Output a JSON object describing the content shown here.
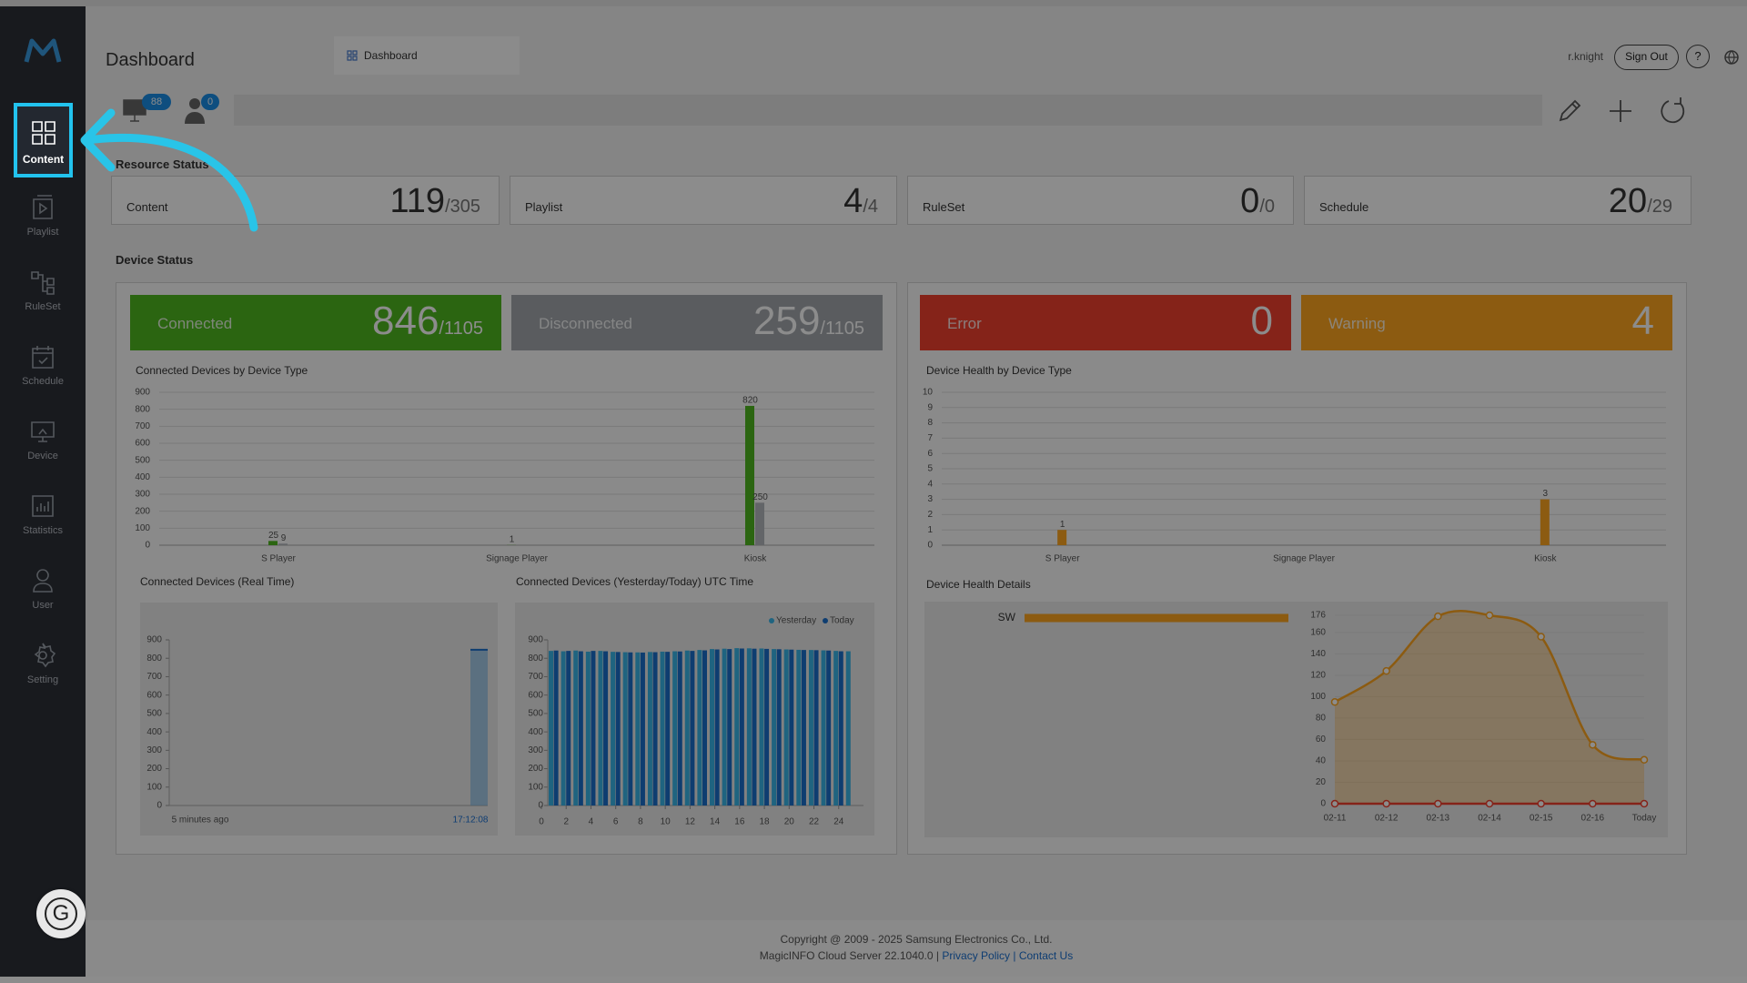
{
  "sidebar": {
    "items": [
      "Content",
      "Playlist",
      "RuleSet",
      "Schedule",
      "Device",
      "Statistics",
      "User",
      "Setting"
    ]
  },
  "header": {
    "title": "Dashboard",
    "tab": "Dashboard",
    "user": "r.knight",
    "sign_out": "Sign Out",
    "help": "?"
  },
  "toolbar": {
    "device_badge": 88,
    "user_badge": 0
  },
  "resource_status": {
    "title": "Resource Status",
    "cards": [
      {
        "label": "Content",
        "count": 119,
        "total": "/305"
      },
      {
        "label": "Playlist",
        "count": 4,
        "total": "/4"
      },
      {
        "label": "RuleSet",
        "count": 0,
        "total": "/0"
      },
      {
        "label": "Schedule",
        "count": 20,
        "total": "/29"
      }
    ]
  },
  "device_status": {
    "title": "Device Status",
    "cards": [
      {
        "label": "Connected",
        "count": 846,
        "total": "/1105",
        "color": "#4fb81f"
      },
      {
        "label": "Disconnected",
        "count": 259,
        "total": "/1105",
        "color": "#a4a8ae"
      },
      {
        "label": "Error",
        "count": 0,
        "total": null,
        "color": "#f2402f"
      },
      {
        "label": "Warning",
        "count": 4,
        "total": null,
        "color": "#ffa620"
      }
    ]
  },
  "charts": [
    {
      "type": "bar",
      "title": "Connected Devices by Device Type",
      "categories": [
        "S Player",
        "Signage Player",
        "Kiosk"
      ],
      "series": [
        {
          "color": "#4fb81f",
          "values": [
            25,
            1,
            820
          ],
          "value_labels": [
            "25",
            "1",
            "820"
          ]
        },
        {
          "color": "#b4b8be",
          "values": [
            9,
            0,
            250
          ],
          "value_labels": [
            "9",
            null,
            "250"
          ]
        }
      ],
      "ylim": [
        0,
        900
      ],
      "yticks": [
        0,
        100,
        200,
        300,
        400,
        500,
        600,
        700,
        800,
        900
      ],
      "grid": true
    },
    {
      "type": "bar",
      "title": "Device Health by Device Type",
      "categories": [
        "S Player",
        "Signage Player",
        "Kiosk"
      ],
      "series": [
        {
          "color": "#ffa620",
          "values": [
            1,
            0,
            3
          ],
          "value_labels": [
            "1",
            null,
            "3"
          ]
        }
      ],
      "ylim": [
        0,
        10
      ],
      "yticks": [
        0,
        1,
        2,
        3,
        4,
        5,
        6,
        7,
        8,
        9,
        10
      ],
      "grid": true
    },
    {
      "type": "realtime",
      "title": "Connected Devices (Real Time)",
      "x_labels": [
        "5 minutes ago",
        "17:12:08"
      ],
      "values": [
        846
      ],
      "color": "#6fb3ea",
      "ylim": [
        0,
        900
      ],
      "yticks": [
        0,
        100,
        200,
        300,
        400,
        500,
        600,
        700,
        800,
        900
      ],
      "grid": false
    },
    {
      "type": "hourly",
      "title": "Connected Devices (Yesterday/Today) UTC Time",
      "x": [
        1,
        2,
        3,
        4,
        5,
        6,
        7,
        8,
        9,
        10,
        11,
        12,
        13,
        14,
        15,
        16,
        17,
        18,
        19,
        20,
        21,
        22,
        23,
        24,
        25
      ],
      "series": [
        {
          "name": "Yesterday",
          "color": "#3ab6ea",
          "values": [
            840,
            838,
            842,
            836,
            840,
            835,
            833,
            832,
            834,
            836,
            838,
            842,
            845,
            850,
            852,
            855,
            854,
            853,
            850,
            848,
            846,
            845,
            843,
            840,
            838
          ]
        },
        {
          "name": "Today",
          "color": "#1a6fcc",
          "values": [
            842,
            840,
            838,
            840,
            838,
            834,
            832,
            831,
            833,
            835,
            837,
            840,
            843,
            848,
            850,
            853,
            852,
            851,
            849,
            847,
            845,
            844,
            842,
            838,
            null
          ]
        }
      ],
      "xlim": [
        0,
        26
      ],
      "xticks": [
        0,
        2,
        4,
        6,
        8,
        10,
        12,
        14,
        16,
        18,
        20,
        22,
        24
      ],
      "ylim": [
        0,
        900
      ],
      "yticks": [
        0,
        100,
        200,
        300,
        400,
        500,
        600,
        700,
        800,
        900
      ],
      "grid": false
    },
    {
      "type": "hbar",
      "title": "Device Health Details",
      "categories": [
        "SW"
      ],
      "values": [
        4
      ],
      "color": "#ffa620",
      "xlim": [
        0,
        4
      ]
    },
    {
      "type": "area",
      "categories": [
        "02-11",
        "02-12",
        "02-13",
        "02-14",
        "02-15",
        "02-16",
        "Today"
      ],
      "series": [
        {
          "color": "#ffa620",
          "values": [
            95,
            124,
            175,
            176,
            156,
            55,
            41
          ]
        },
        {
          "color": "#f2402f",
          "values": [
            0,
            0,
            0,
            0,
            0,
            0,
            0
          ]
        }
      ],
      "ylim": [
        0,
        176
      ],
      "yticks": [
        0,
        20,
        40,
        60,
        80,
        100,
        120,
        140,
        160,
        176
      ],
      "grid": true
    }
  ],
  "footer": {
    "copyright": "Copyright @ 2009 - 2025 Samsung Electronics Co., Ltd.",
    "version": "MagicINFO Cloud Server 22.1040.0 |",
    "privacy": "Privacy Policy",
    "contact": "| Contact Us"
  },
  "fab": "G"
}
